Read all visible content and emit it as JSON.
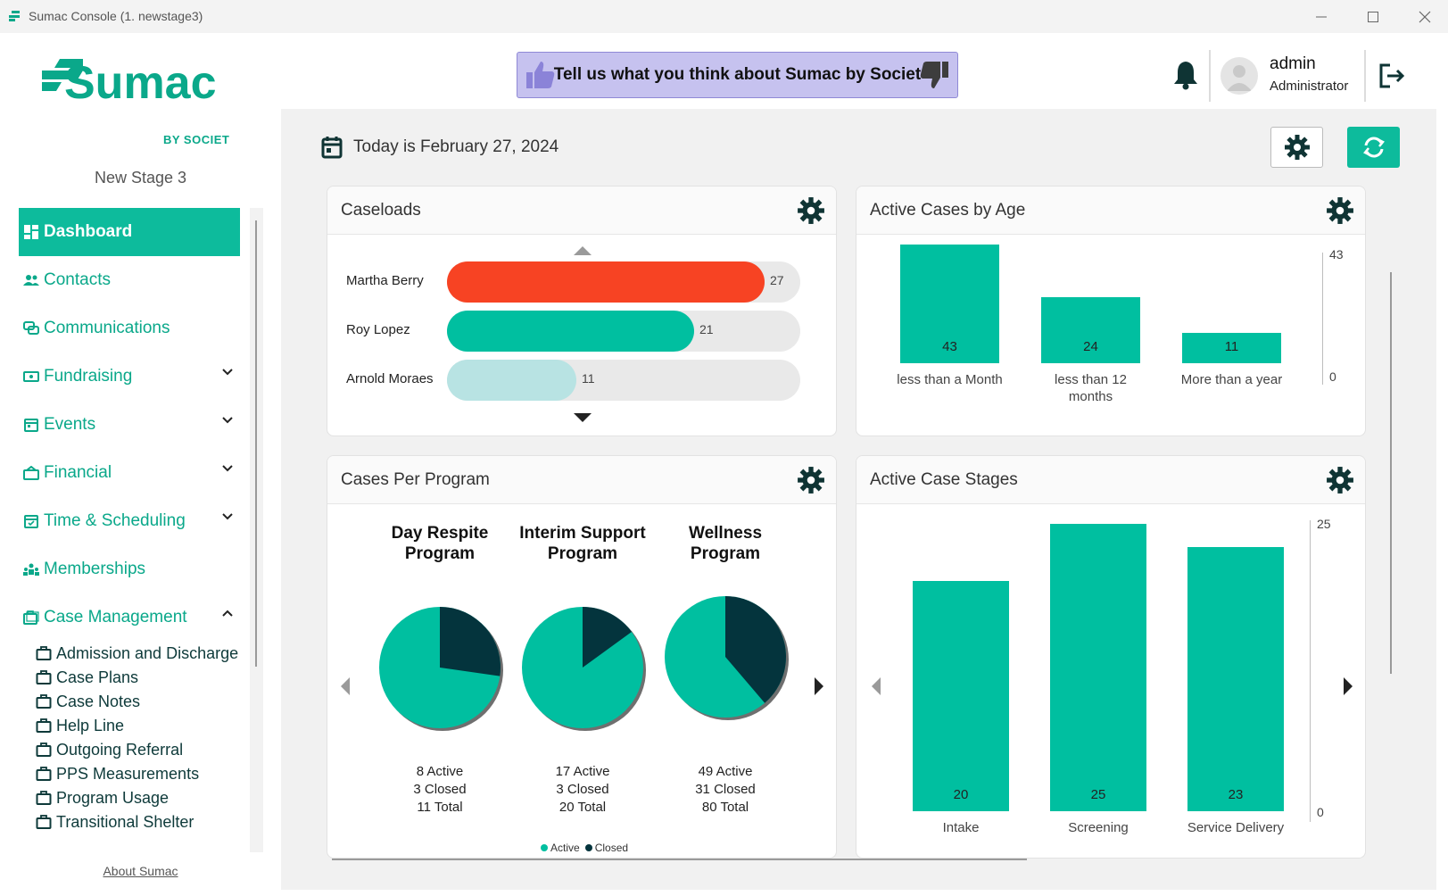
{
  "window": {
    "title": "Sumac Console (1. newstage3)"
  },
  "brand": {
    "name": "Sumac",
    "sub": "BY SOCIET",
    "stage": "New Stage 3"
  },
  "sidebar": {
    "items": [
      {
        "label": "Dashboard",
        "icon": "dashboard-icon"
      },
      {
        "label": "Contacts",
        "icon": "contacts-icon"
      },
      {
        "label": "Communications",
        "icon": "communications-icon"
      },
      {
        "label": "Fundraising",
        "icon": "fundraising-icon"
      },
      {
        "label": "Events",
        "icon": "events-icon"
      },
      {
        "label": "Financial",
        "icon": "financial-icon"
      },
      {
        "label": "Time & Scheduling",
        "icon": "calendar-icon"
      },
      {
        "label": "Memberships",
        "icon": "memberships-icon"
      },
      {
        "label": "Case Management",
        "icon": "briefcase-icon"
      }
    ],
    "case_management_items": [
      "Admission and Discharge",
      "Case Plans",
      "Case Notes",
      "Help Line",
      "Outgoing Referral",
      "PPS Measurements",
      "Program Usage",
      "Transitional Shelter"
    ],
    "about": "About Sumac"
  },
  "header": {
    "feedback": "Tell us what you think about Sumac by Societ",
    "user_name": "admin",
    "user_role": "Administrator"
  },
  "main": {
    "date_text": "Today is February 27, 2024"
  },
  "colors": {
    "accent": "#0dbb9c",
    "bar": "#00bfa0",
    "alert_bar": "#f74323",
    "light_bar": "#b8e3e3",
    "dark_slice": "#04343d",
    "feedback_bg": "#c6c2ef"
  },
  "caseloads": {
    "title": "Caseloads",
    "max": 27,
    "rows": [
      {
        "name": "Martha Berry",
        "value": 27,
        "color": "#f74323"
      },
      {
        "name": "Roy Lopez",
        "value": 21,
        "color": "#00bfa0"
      },
      {
        "name": "Arnold Moraes",
        "value": 11,
        "color": "#b8e3e3"
      }
    ]
  },
  "age_chart": {
    "title": "Active Cases by Age",
    "axis_max_label": "43",
    "axis_min_label": "0"
  },
  "program_chart": {
    "title": "Cases Per Program",
    "legend_active": "Active",
    "legend_closed": "Closed",
    "programs": [
      {
        "name": "Day Respite Program",
        "active_text": "8 Active",
        "closed_text": "3 Closed",
        "total_text": "11 Total"
      },
      {
        "name": "Interim Support Program",
        "active_text": "17 Active",
        "closed_text": "3 Closed",
        "total_text": "20 Total"
      },
      {
        "name": "Wellness Program",
        "active_text": "49 Active",
        "closed_text": "31 Closed",
        "total_text": "80 Total"
      }
    ]
  },
  "stages_chart": {
    "title": "Active Case Stages",
    "axis_max_label": "25",
    "axis_min_label": "0"
  },
  "chart_data": [
    {
      "type": "bar",
      "title": "Active Cases by Age",
      "categories": [
        "less than a Month",
        "less than 12 months",
        "More than a year"
      ],
      "values": [
        43,
        24,
        11
      ],
      "ylim": [
        0,
        43
      ],
      "grid": false
    },
    {
      "type": "pie",
      "title": "Day Respite Program",
      "categories": [
        "Active",
        "Closed"
      ],
      "values": [
        8,
        3
      ]
    },
    {
      "type": "pie",
      "title": "Interim Support Program",
      "categories": [
        "Active",
        "Closed"
      ],
      "values": [
        17,
        3
      ]
    },
    {
      "type": "pie",
      "title": "Wellness Program",
      "categories": [
        "Active",
        "Closed"
      ],
      "values": [
        49,
        31
      ]
    },
    {
      "type": "bar",
      "title": "Active Case Stages",
      "categories": [
        "Intake",
        "Screening",
        "Service Delivery"
      ],
      "values": [
        20,
        25,
        23
      ],
      "ylim": [
        0,
        25
      ],
      "grid": false
    }
  ]
}
